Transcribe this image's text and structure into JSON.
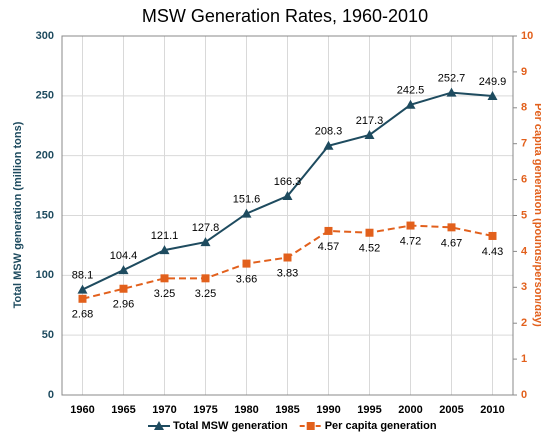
{
  "chart_data": {
    "type": "line",
    "title": "MSW Generation Rates, 1960-2010",
    "y_label": "Total MSW generation (million tons)",
    "y2_label": "Per capita generation (pounds/person/day)",
    "categories": [
      "1960",
      "1965",
      "1970",
      "1975",
      "1980",
      "1985",
      "1990",
      "1995",
      "2000",
      "2005",
      "2010"
    ],
    "series": [
      {
        "name": "Total MSW generation",
        "color": "#1e4b5f",
        "marker": "triangle",
        "dash": false,
        "values": [
          88.1,
          104.4,
          121.1,
          127.8,
          151.6,
          166.3,
          208.3,
          217.3,
          242.5,
          252.7,
          249.9
        ]
      },
      {
        "name": "Per capita generation",
        "color": "#e2601c",
        "marker": "square",
        "dash": true,
        "axis": "y2",
        "values": [
          2.68,
          2.96,
          3.25,
          3.25,
          3.66,
          3.83,
          4.57,
          4.52,
          4.72,
          4.67,
          4.43
        ]
      }
    ],
    "ylim": [
      0,
      300
    ],
    "yticks": [
      0,
      50,
      100,
      150,
      200,
      250,
      300
    ],
    "y2lim": [
      0,
      10
    ],
    "y2ticks": [
      0,
      1,
      2,
      3,
      4,
      5,
      6,
      7,
      8,
      9,
      10
    ],
    "grid": true,
    "legend": "bottom"
  }
}
